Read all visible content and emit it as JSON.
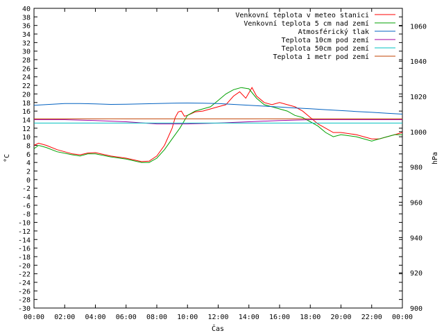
{
  "chart_data": {
    "type": "line",
    "xlabel": "Čas",
    "ylabel": "°C",
    "y2label": "hPa",
    "xlim": [
      0,
      24
    ],
    "ylim": [
      -30,
      40
    ],
    "y2lim": [
      900,
      1070
    ],
    "x_ticks": [
      {
        "x": 0,
        "label": "00:00"
      },
      {
        "x": 2,
        "label": "02:00"
      },
      {
        "x": 4,
        "label": "04:00"
      },
      {
        "x": 6,
        "label": "06:00"
      },
      {
        "x": 8,
        "label": "08:00"
      },
      {
        "x": 10,
        "label": "10:00"
      },
      {
        "x": 12,
        "label": "12:00"
      },
      {
        "x": 14,
        "label": "14:00"
      },
      {
        "x": 16,
        "label": "16:00"
      },
      {
        "x": 18,
        "label": "18:00"
      },
      {
        "x": 20,
        "label": "20:00"
      },
      {
        "x": 22,
        "label": "22:00"
      },
      {
        "x": 24,
        "label": "00:00"
      }
    ],
    "y_ticks": [
      40,
      38,
      36,
      34,
      32,
      30,
      28,
      26,
      24,
      22,
      20,
      18,
      16,
      14,
      12,
      10,
      8,
      6,
      4,
      2,
      0,
      -2,
      -4,
      -6,
      -8,
      -10,
      -12,
      -14,
      -16,
      -18,
      -20,
      -22,
      -24,
      -26,
      -28,
      -30
    ],
    "y2_ticks": [
      900,
      920,
      940,
      960,
      980,
      1000,
      1020,
      1040,
      1060
    ],
    "legend_position": "top-right",
    "grid": false,
    "series": [
      {
        "name": "Venkovní teplota v meteo stanici",
        "color": "#ff0000",
        "axis": "left",
        "x": [
          0,
          0.3,
          0.8,
          1.5,
          2.5,
          3,
          3.5,
          4,
          5,
          6,
          7,
          7.5,
          8,
          8.5,
          9,
          9.2,
          9.4,
          9.6,
          9.8,
          10,
          10.5,
          11,
          11.5,
          12,
          12.5,
          13,
          13.4,
          13.8,
          14.2,
          14.5,
          15,
          15.5,
          16,
          16.5,
          17,
          17.5,
          18,
          18.5,
          19,
          19.5,
          20,
          21,
          22,
          22.5,
          23,
          23.5,
          24
        ],
        "y": [
          8,
          8.5,
          8,
          7,
          6,
          5.8,
          6.2,
          6.3,
          5.5,
          5,
          4.2,
          4.3,
          5.5,
          8,
          12,
          14.5,
          15.8,
          16,
          14.8,
          15,
          15.8,
          16,
          16.5,
          17,
          17.5,
          19.5,
          20.5,
          19,
          21.5,
          19.5,
          18,
          17.5,
          18,
          17.5,
          17,
          16,
          14.5,
          13,
          12,
          11,
          11,
          10.5,
          9.5,
          9.5,
          10,
          10.5,
          11
        ]
      },
      {
        "name": "Venkovní teplota 5 cm nad zemí",
        "color": "#00a000",
        "axis": "left",
        "x": [
          0,
          0.3,
          0.8,
          1.5,
          2.5,
          3,
          3.5,
          4,
          5,
          6,
          7,
          7.5,
          8,
          8.5,
          9,
          9.5,
          10,
          10.5,
          11,
          11.5,
          12,
          12.5,
          13,
          13.5,
          14,
          14.5,
          15,
          15.5,
          16,
          16.5,
          17,
          17.5,
          18,
          18.5,
          19,
          19.5,
          20,
          21,
          22,
          22.5,
          23,
          23.5,
          24
        ],
        "y": [
          7.2,
          8,
          7.5,
          6.5,
          5.8,
          5.5,
          6,
          6,
          5.3,
          4.8,
          4,
          4,
          5,
          7,
          9.5,
          12,
          15,
          16,
          16.5,
          17,
          18.5,
          20,
          21,
          21.5,
          21.2,
          19,
          17.5,
          17,
          16.5,
          16,
          15,
          14.5,
          13.5,
          12.5,
          11,
          10,
          10.5,
          10,
          9,
          9.5,
          10,
          10.5,
          10.5
        ]
      },
      {
        "name": "Atmosférický tlak",
        "color": "#0060c0",
        "axis": "right",
        "x": [
          0,
          1,
          2,
          3,
          4,
          5,
          6,
          7,
          8,
          9,
          10,
          11,
          12,
          13,
          14,
          15,
          16,
          17,
          18,
          19,
          20,
          21,
          22,
          23,
          24
        ],
        "y": [
          1015,
          1015.5,
          1016,
          1016,
          1015.8,
          1015.5,
          1015.6,
          1015.8,
          1016,
          1016.2,
          1016.3,
          1016.2,
          1016,
          1015.5,
          1015,
          1014.5,
          1014,
          1013.5,
          1013,
          1012.5,
          1012,
          1011.5,
          1011,
          1010.5,
          1010
        ]
      },
      {
        "name": "Teplota 10cm pod zemí",
        "color": "#a000a0",
        "axis": "left",
        "x": [
          0,
          2,
          4,
          6,
          8,
          10,
          12,
          14,
          16,
          18,
          20,
          22,
          24
        ],
        "y": [
          14,
          14,
          13.8,
          13.5,
          13,
          13,
          13.2,
          13.5,
          13.8,
          14,
          14,
          14,
          14
        ]
      },
      {
        "name": "Teplota 50cm pod zemí",
        "color": "#00c0c0",
        "axis": "left",
        "x": [
          0,
          4,
          8,
          12,
          16,
          20,
          24
        ],
        "y": [
          13.2,
          13.2,
          13.2,
          13.2,
          13.2,
          13.2,
          13.2
        ]
      },
      {
        "name": "Teplota 1 metr pod zemí",
        "color": "#c04000",
        "axis": "left",
        "x": [
          0,
          24
        ],
        "y": [
          14.2,
          14.2
        ]
      }
    ]
  }
}
